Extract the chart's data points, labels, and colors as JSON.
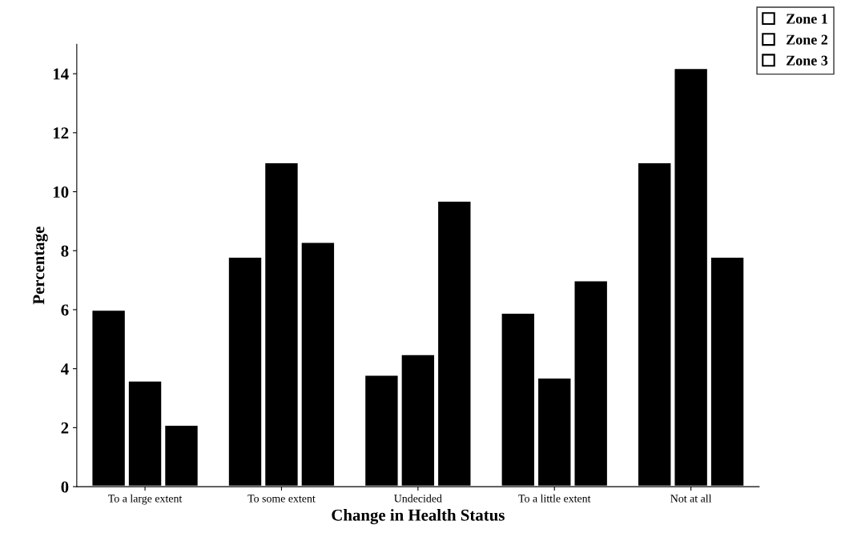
{
  "chart_data": {
    "type": "bar",
    "xlabel": "Change in Health Status",
    "ylabel": "Percentage",
    "categories": [
      "To a large extent",
      "To some extent",
      "Undecided",
      "To a little extent",
      "Not at all"
    ],
    "series": [
      {
        "name": "Zone 1",
        "color": "#000000",
        "values": [
          6.0,
          7.8,
          3.8,
          5.9,
          11.0
        ]
      },
      {
        "name": "Zone 2",
        "color": "#000000",
        "values": [
          3.6,
          11.0,
          4.5,
          3.7,
          14.2
        ]
      },
      {
        "name": "Zone 3",
        "color": "#000000",
        "values": [
          2.1,
          8.3,
          9.7,
          7.0,
          7.8
        ]
      }
    ],
    "ylim": [
      0,
      15
    ],
    "yticks": [
      0,
      2,
      4,
      6,
      8,
      10,
      12,
      14
    ],
    "grid": false,
    "legend": "top right"
  }
}
